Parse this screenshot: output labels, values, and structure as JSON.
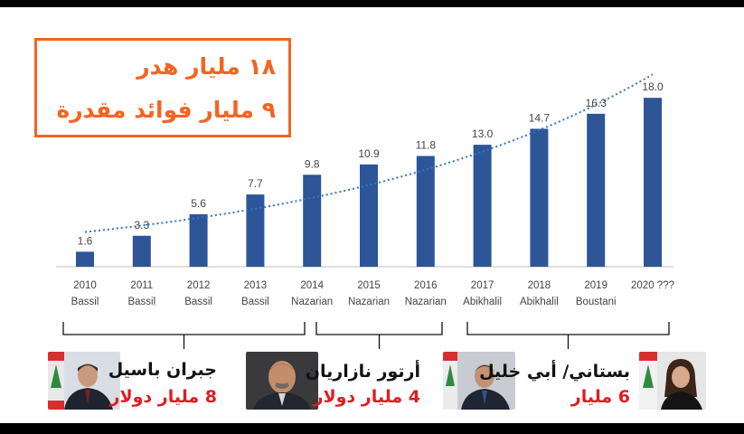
{
  "headline": {
    "line1": "١٨ مليار هدر",
    "line2": "٩ مليار فوائد مقدرة"
  },
  "chart_data": {
    "type": "bar",
    "categories": [
      "2010",
      "2011",
      "2012",
      "2013",
      "2014",
      "2015",
      "2016",
      "2017",
      "2018",
      "2019",
      "2020 ???"
    ],
    "sublabels": [
      "Bassil",
      "Bassil",
      "Bassil",
      "Bassil",
      "Nazarian",
      "Nazarian",
      "Nazarian",
      "Abikhalil",
      "Abikhalil",
      "Boustani",
      ""
    ],
    "values": [
      1.6,
      3.3,
      5.6,
      7.7,
      9.8,
      10.9,
      11.8,
      13.0,
      14.7,
      16.3,
      18.0
    ],
    "value_labels": [
      "1.6",
      "3.3",
      "5.6",
      "7.7",
      "9.8",
      "10.9",
      "11.8",
      "13.0",
      "14.7",
      "16.3",
      "18.0"
    ],
    "ylim": [
      0,
      20
    ],
    "trendline": "exponential, dotted",
    "grid": false,
    "colors": {
      "bar": "#2e5597",
      "trend": "#2e75c4"
    }
  },
  "people": [
    {
      "name": "جبران باسيل",
      "amount": "8 مليار دولار"
    },
    {
      "name": "أرتور نازاريان",
      "amount": "4 مليار دولار"
    },
    {
      "name": "بستاني/ أبي خليل",
      "amount": "6 مليار"
    }
  ],
  "colors": {
    "accent": "#f26522",
    "amount": "#e21b23"
  }
}
